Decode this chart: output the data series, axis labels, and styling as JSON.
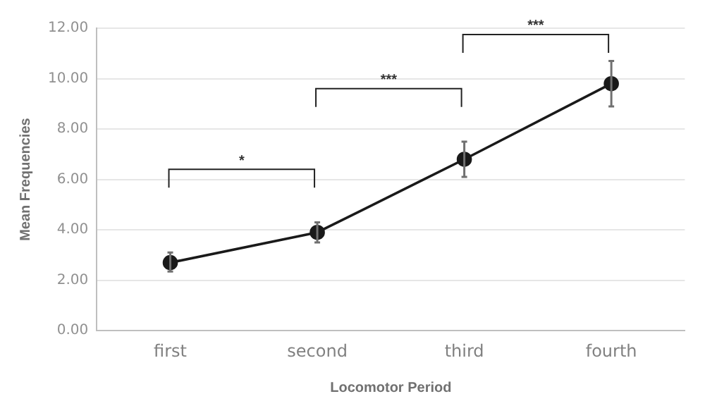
{
  "chart_data": {
    "type": "line",
    "xlabel": "Locomotor Period",
    "ylabel": "Mean Frequencies",
    "categories": [
      "first",
      "second",
      "third",
      "fourth"
    ],
    "series": [
      {
        "color": "#1a1a1a",
        "values": [
          2.7,
          3.9,
          6.8,
          9.8
        ],
        "errors": [
          [
            2.35,
            3.1
          ],
          [
            3.5,
            4.3
          ],
          [
            6.1,
            7.5
          ],
          [
            8.9,
            10.7
          ]
        ]
      }
    ],
    "ylim": [
      0,
      12
    ],
    "yticks": [
      {
        "value": 0,
        "label": "0.00"
      },
      {
        "value": 2,
        "label": "2.00"
      },
      {
        "value": 4,
        "label": "4.00"
      },
      {
        "value": 6,
        "label": "6.00"
      },
      {
        "value": 8,
        "label": "8.00"
      },
      {
        "value": 10,
        "label": "10.00"
      },
      {
        "value": 12,
        "label": "12.00"
      }
    ],
    "annotations": [
      "*",
      "***",
      "***"
    ],
    "grid": "y",
    "marker": "circle",
    "line_style": "solid",
    "legend": false
  }
}
